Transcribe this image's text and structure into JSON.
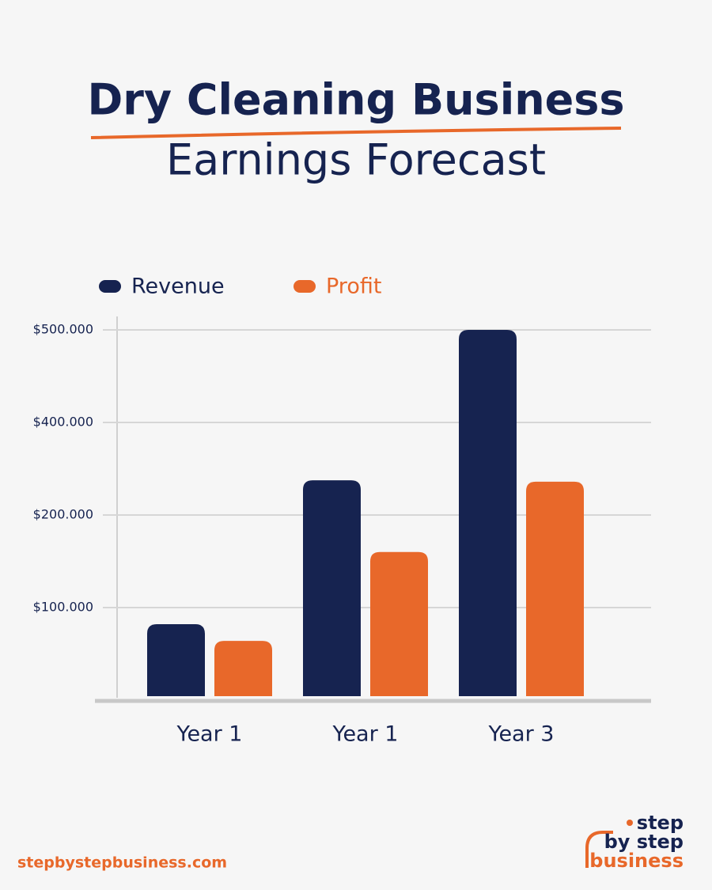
{
  "chart_data": {
    "type": "bar",
    "title": "Dry Cleaning Business",
    "subtitle": "Earnings Forecast",
    "categories": [
      "Year 1",
      "Year 1",
      "Year 3"
    ],
    "series": [
      {
        "name": "Revenue",
        "color": "#162350",
        "values": [
          82000,
          275000,
          500000
        ]
      },
      {
        "name": "Profit",
        "color": "#e8682a",
        "values": [
          64000,
          160000,
          272000
        ]
      }
    ],
    "ylim": [
      0,
      500000
    ],
    "yticks": [
      {
        "value": 100000,
        "label": "$100.000"
      },
      {
        "value": 200000,
        "label": "$200.000"
      },
      {
        "value": 400000,
        "label": "$400.000"
      },
      {
        "value": 500000,
        "label": "$500.000"
      }
    ],
    "grid": true
  },
  "footer": "stepbystepbusiness.com",
  "logo": [
    "step",
    "by step",
    "business"
  ]
}
